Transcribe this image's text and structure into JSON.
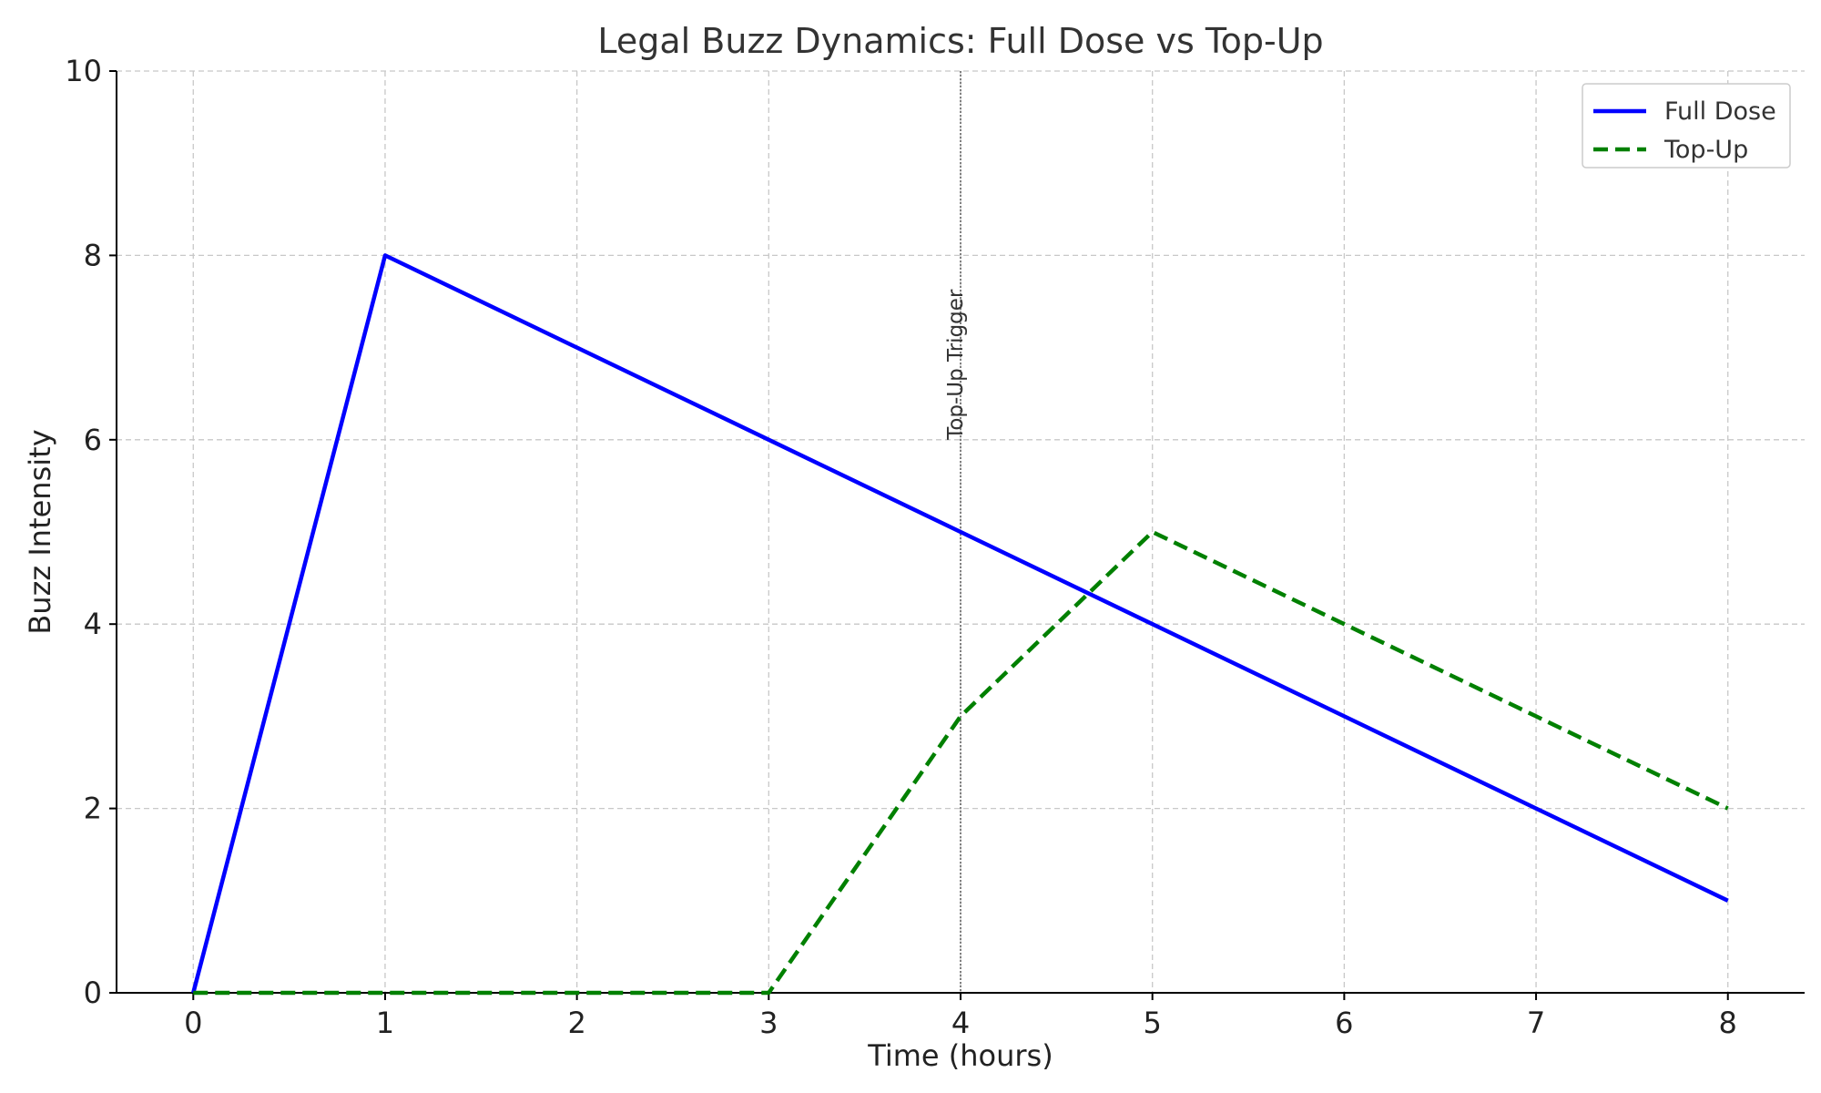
{
  "chart_data": {
    "type": "line",
    "title": "Legal Buzz Dynamics: Full Dose vs Top-Up",
    "xlabel": "Time (hours)",
    "ylabel": "Buzz Intensity",
    "x": [
      0,
      1,
      2,
      3,
      4,
      5,
      6,
      7,
      8
    ],
    "xlim": [
      -0.4,
      8.4
    ],
    "ylim": [
      0,
      10
    ],
    "xticks": [
      0,
      1,
      2,
      3,
      4,
      5,
      6,
      7,
      8
    ],
    "yticks": [
      0,
      2,
      4,
      6,
      8,
      10
    ],
    "grid": true,
    "legend_position": "top-right",
    "series": [
      {
        "name": "Full Dose",
        "values": [
          0,
          8,
          7,
          6,
          5,
          4,
          3,
          2,
          1
        ],
        "color": "#0000ff",
        "style": "solid"
      },
      {
        "name": "Top-Up",
        "values": [
          0,
          0,
          0,
          0,
          3,
          5,
          4,
          3,
          2
        ],
        "color": "#008000",
        "style": "dashed"
      }
    ],
    "annotations": [
      {
        "type": "vline",
        "x": 4,
        "label": "Top-Up Trigger",
        "color": "#808080"
      }
    ]
  }
}
